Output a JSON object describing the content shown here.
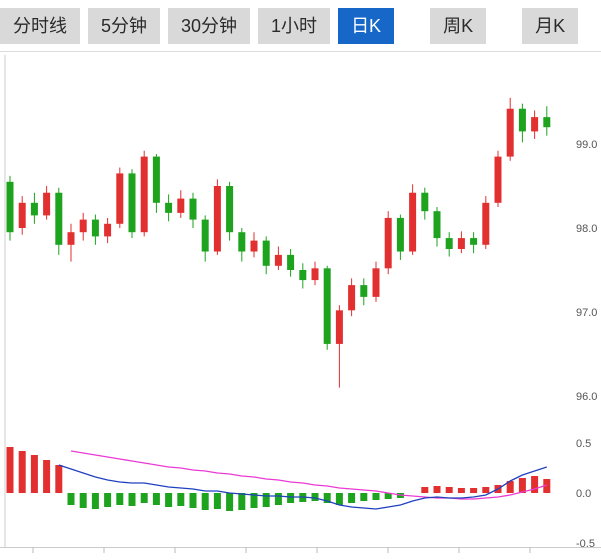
{
  "tabbar": {
    "items": [
      {
        "label": "分时线",
        "active": false
      },
      {
        "label": "5分钟",
        "active": false
      },
      {
        "label": "30分钟",
        "active": false
      },
      {
        "label": "1小时",
        "active": false
      },
      {
        "label": "日K",
        "active": true
      },
      {
        "label": "周K",
        "active": false
      },
      {
        "label": "月K",
        "active": false
      }
    ],
    "active_color": "#1667c7"
  },
  "chart_data": {
    "type": "candlestick",
    "title": "",
    "legend_position": "none",
    "grid": false,
    "main": {
      "ylabel": "",
      "ylim": [
        95.6,
        100.0
      ],
      "y_ticks": [
        "99.0",
        "98.0",
        "97.0",
        "96.0"
      ],
      "y_tick_values": [
        99.0,
        98.0,
        97.0,
        96.0
      ],
      "up_color": "#e23030",
      "down_color": "#1ea31e",
      "candles_format": "open,high,low,close",
      "candles": [
        [
          98.55,
          98.62,
          97.85,
          97.95
        ],
        [
          98.0,
          98.38,
          97.92,
          98.3
        ],
        [
          98.3,
          98.42,
          98.05,
          98.15
        ],
        [
          98.15,
          98.5,
          98.1,
          98.42
        ],
        [
          98.42,
          98.48,
          97.68,
          97.8
        ],
        [
          97.8,
          98.05,
          97.6,
          97.95
        ],
        [
          97.95,
          98.18,
          97.85,
          98.1
        ],
        [
          98.1,
          98.16,
          97.8,
          97.9
        ],
        [
          97.9,
          98.12,
          97.82,
          98.05
        ],
        [
          98.05,
          98.72,
          98.0,
          98.65
        ],
        [
          98.65,
          98.7,
          97.88,
          97.95
        ],
        [
          97.95,
          98.92,
          97.9,
          98.85
        ],
        [
          98.85,
          98.88,
          98.18,
          98.3
        ],
        [
          98.3,
          98.4,
          98.08,
          98.18
        ],
        [
          98.18,
          98.45,
          98.12,
          98.35
        ],
        [
          98.35,
          98.42,
          98.0,
          98.1
        ],
        [
          98.1,
          98.15,
          97.6,
          97.72
        ],
        [
          97.72,
          98.58,
          97.68,
          98.5
        ],
        [
          98.5,
          98.55,
          97.85,
          97.95
        ],
        [
          97.95,
          98.0,
          97.6,
          97.72
        ],
        [
          97.72,
          97.95,
          97.65,
          97.85
        ],
        [
          97.85,
          97.9,
          97.45,
          97.55
        ],
        [
          97.55,
          97.78,
          97.5,
          97.68
        ],
        [
          97.68,
          97.75,
          97.42,
          97.5
        ],
        [
          97.5,
          97.58,
          97.28,
          97.38
        ],
        [
          97.38,
          97.6,
          97.32,
          97.52
        ],
        [
          97.52,
          97.55,
          96.55,
          96.62
        ],
        [
          96.62,
          97.08,
          96.1,
          97.02
        ],
        [
          97.02,
          97.4,
          96.95,
          97.32
        ],
        [
          97.32,
          97.4,
          97.08,
          97.18
        ],
        [
          97.18,
          97.6,
          97.12,
          97.52
        ],
        [
          97.52,
          98.2,
          97.45,
          98.12
        ],
        [
          98.12,
          98.16,
          97.62,
          97.72
        ],
        [
          97.72,
          98.52,
          97.68,
          98.42
        ],
        [
          98.42,
          98.48,
          98.1,
          98.2
        ],
        [
          98.2,
          98.25,
          97.78,
          97.88
        ],
        [
          97.88,
          97.95,
          97.66,
          97.75
        ],
        [
          97.75,
          97.96,
          97.7,
          97.88
        ],
        [
          97.88,
          97.95,
          97.7,
          97.8
        ],
        [
          97.8,
          98.38,
          97.75,
          98.3
        ],
        [
          98.3,
          98.92,
          98.25,
          98.85
        ],
        [
          98.85,
          99.55,
          98.8,
          99.42
        ],
        [
          99.42,
          99.48,
          99.02,
          99.15
        ],
        [
          99.15,
          99.4,
          99.06,
          99.32
        ],
        [
          99.32,
          99.45,
          99.1,
          99.2
        ]
      ]
    },
    "indicator": {
      "type": "macd",
      "ylim": [
        -0.5,
        0.5
      ],
      "y_ticks": [
        "0.5",
        "0.0",
        "-0.5"
      ],
      "y_tick_values": [
        0.5,
        0.0,
        -0.5
      ],
      "dif_color": "#2040c0",
      "dea_color": "#e93bd4",
      "histogram": [
        0.46,
        0.42,
        0.38,
        0.33,
        0.28,
        -0.12,
        -0.15,
        -0.16,
        -0.14,
        -0.12,
        -0.13,
        -0.1,
        -0.12,
        -0.14,
        -0.13,
        -0.15,
        -0.17,
        -0.16,
        -0.18,
        -0.17,
        -0.15,
        -0.14,
        -0.12,
        -0.1,
        -0.09,
        -0.08,
        -0.1,
        -0.12,
        -0.1,
        -0.08,
        -0.07,
        -0.06,
        -0.05,
        0.0,
        0.06,
        0.07,
        0.06,
        0.05,
        0.05,
        0.06,
        0.08,
        0.12,
        0.15,
        0.17,
        0.14
      ],
      "dif_line": [
        null,
        null,
        null,
        null,
        0.28,
        0.24,
        0.2,
        0.16,
        0.13,
        0.11,
        0.1,
        0.1,
        0.08,
        0.06,
        0.05,
        0.04,
        0.02,
        0.02,
        0.0,
        -0.01,
        -0.02,
        -0.03,
        -0.03,
        -0.04,
        -0.04,
        -0.05,
        -0.08,
        -0.12,
        -0.14,
        -0.15,
        -0.16,
        -0.14,
        -0.12,
        -0.08,
        -0.05,
        -0.04,
        -0.05,
        -0.05,
        -0.04,
        -0.02,
        0.04,
        0.12,
        0.18,
        0.22,
        0.26
      ],
      "dea_line": [
        null,
        null,
        null,
        null,
        null,
        0.42,
        0.4,
        0.38,
        0.36,
        0.34,
        0.32,
        0.3,
        0.28,
        0.26,
        0.25,
        0.23,
        0.22,
        0.2,
        0.19,
        0.17,
        0.16,
        0.14,
        0.13,
        0.11,
        0.1,
        0.08,
        0.07,
        0.05,
        0.04,
        0.03,
        0.02,
        0.0,
        -0.02,
        -0.03,
        -0.04,
        -0.05,
        -0.05,
        -0.06,
        -0.06,
        -0.05,
        -0.04,
        -0.02,
        0.01,
        0.04,
        0.08
      ]
    },
    "axis_text_color": "#555555"
  }
}
